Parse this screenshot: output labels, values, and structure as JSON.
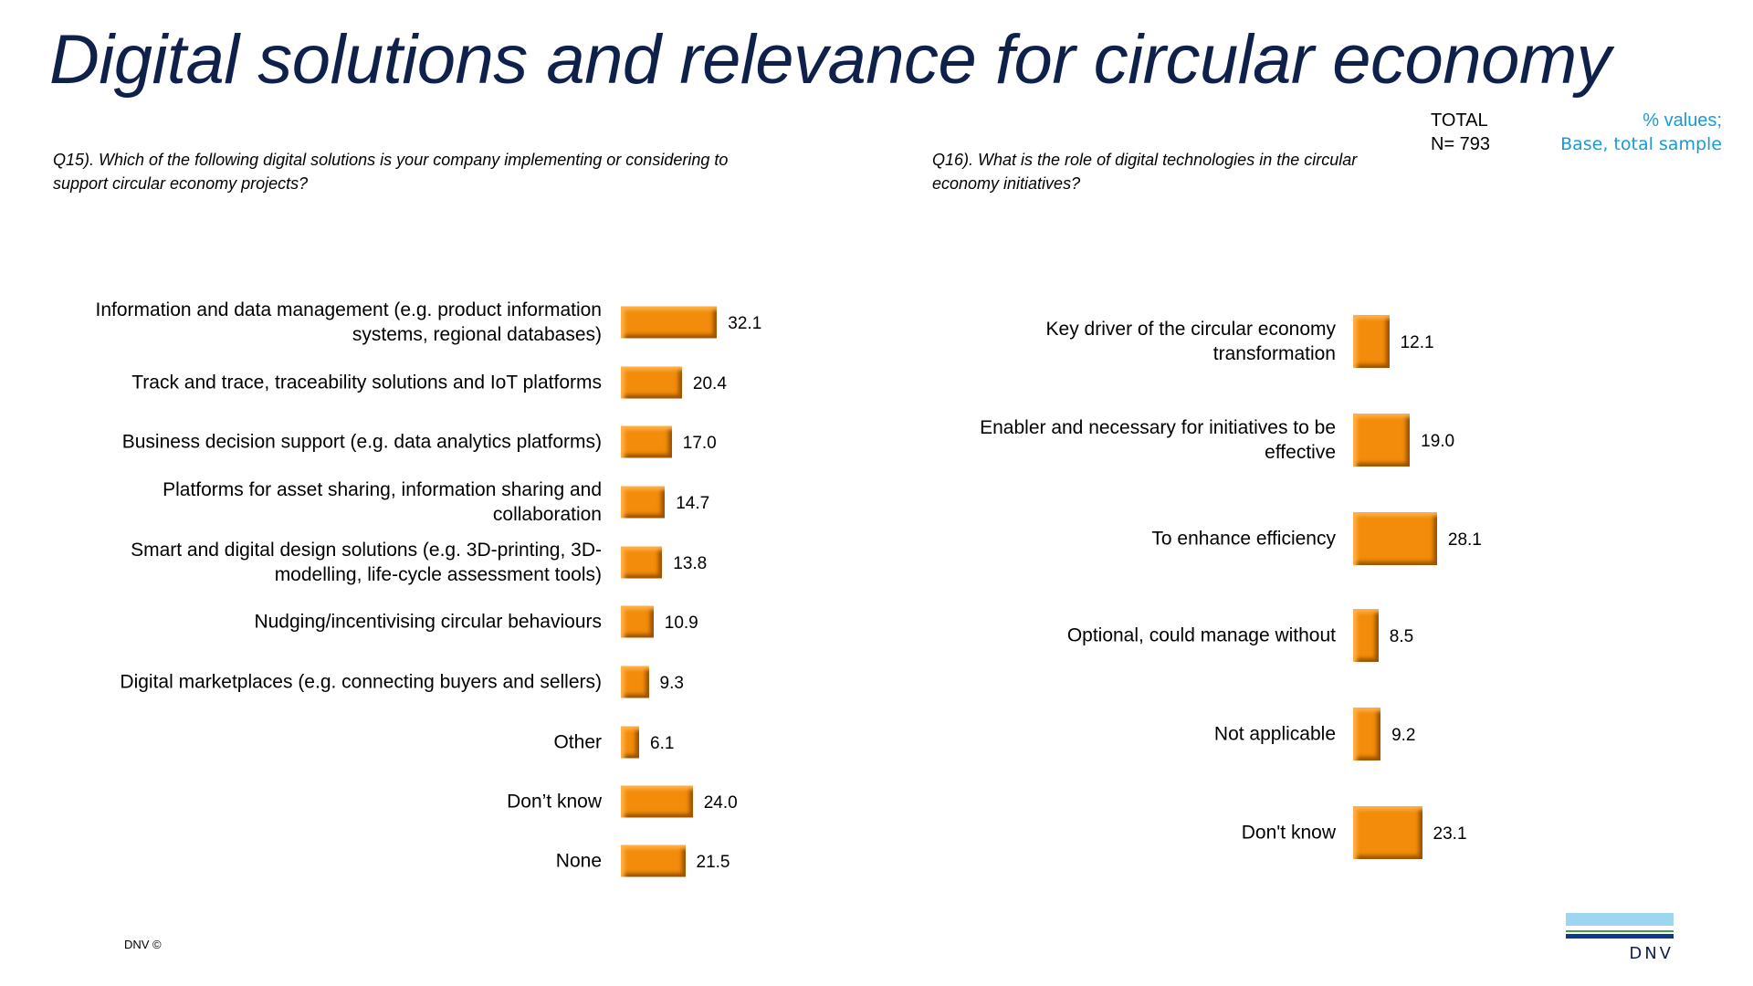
{
  "title": "Digital solutions and relevance for circular economy",
  "q15": "Q15). Which of the following digital solutions is your company implementing or considering to support circular economy projects?",
  "q16": "Q16). What is the role of digital technologies in the circular economy initiatives?",
  "total": {
    "label": "TOTAL",
    "n": "N= 793"
  },
  "base": {
    "line1": "% values;",
    "line2": "Base, total sample"
  },
  "footer": {
    "copyright": "DNV ©",
    "logo_text": "DNV"
  },
  "colors": {
    "bar": "#f28c0a",
    "title": "#0f204b",
    "accent": "#1a9ad6"
  },
  "chart_data": [
    {
      "type": "bar",
      "orientation": "horizontal",
      "categories": [
        "Information and data management (e.g. product information systems, regional databases)",
        "Track and trace, traceability solutions and IoT platforms",
        "Business decision support (e.g. data analytics platforms)",
        "Platforms for asset sharing, information sharing and collaboration",
        "Smart and digital design solutions (e.g. 3D-printing, 3D-modelling, life-cycle assessment tools)",
        "Nudging/incentivising circular behaviours",
        "Digital marketplaces (e.g. connecting buyers and sellers)",
        "Other",
        "Don’t know",
        "None"
      ],
      "values": [
        32.1,
        20.4,
        17.0,
        14.7,
        13.8,
        10.9,
        9.3,
        6.1,
        24.0,
        21.5
      ],
      "labels": [
        "32.1",
        "20.4",
        "17.0",
        "14.7",
        "13.8",
        "10.9",
        "9.3",
        "6.1",
        "24.0",
        "21.5"
      ]
    },
    {
      "type": "bar",
      "orientation": "horizontal",
      "categories": [
        "Key driver of the circular economy transformation",
        "Enabler and necessary for initiatives to be effective",
        "To enhance efficiency",
        "Optional, could manage without",
        "Not applicable",
        "Don't know"
      ],
      "values": [
        12.1,
        19.0,
        28.1,
        8.5,
        9.2,
        23.1
      ],
      "labels": [
        "12.1",
        "19.0",
        "28.1",
        "8.5",
        "9.2",
        "23.1"
      ]
    }
  ]
}
